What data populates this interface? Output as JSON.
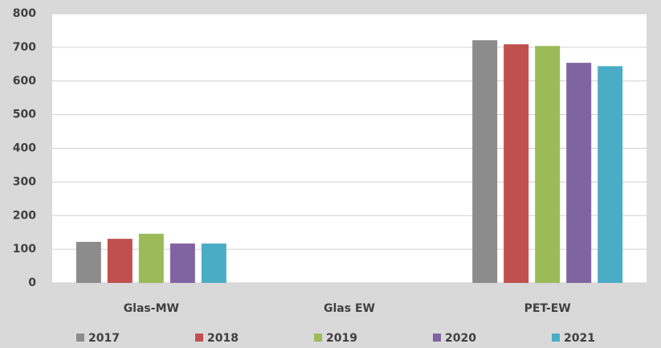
{
  "chart_data": {
    "type": "bar",
    "categories": [
      "Glas-MW",
      "Glas EW",
      "PET-EW"
    ],
    "series": [
      {
        "name": "2017",
        "color": "#8c8c8c",
        "values": [
          122,
          0,
          721
        ]
      },
      {
        "name": "2018",
        "color": "#c0504d",
        "values": [
          131,
          0,
          709
        ]
      },
      {
        "name": "2019",
        "color": "#9bbb59",
        "values": [
          146,
          0,
          704
        ]
      },
      {
        "name": "2020",
        "color": "#8064a2",
        "values": [
          117,
          0,
          654
        ]
      },
      {
        "name": "2021",
        "color": "#4bacc6",
        "values": [
          117,
          0,
          644
        ]
      }
    ],
    "ylim": [
      0,
      800
    ],
    "yticks": [
      0,
      100,
      200,
      300,
      400,
      500,
      600,
      700,
      800
    ],
    "grid": true,
    "legend": "bottom"
  }
}
